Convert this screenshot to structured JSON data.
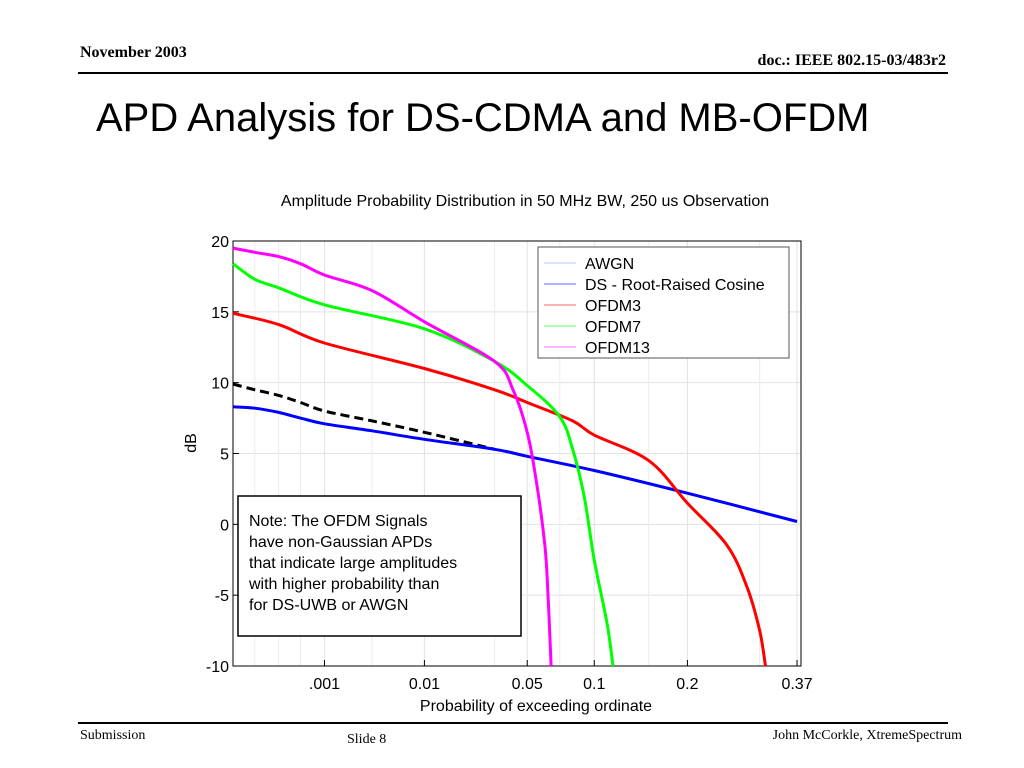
{
  "header": {
    "date": "November 2003",
    "doc": "doc.: IEEE 802.15-03/483r2"
  },
  "slide": {
    "title": "APD Analysis for DS-CDMA and MB-OFDM"
  },
  "footer": {
    "left": "Submission",
    "center": "Slide 8",
    "right": "John McCorkle, XtremeSpectrum"
  },
  "note": {
    "lines": [
      "Note: The OFDM Signals",
      "have non-Gaussian APDs",
      "that indicate large amplitudes",
      "with higher probability than",
      "for DS-UWB or AWGN"
    ]
  },
  "chart_data": {
    "type": "line",
    "title": "Amplitude Probability Distribution in 50 MHz BW, 250 us Observation",
    "xlabel": "Probability of exceeding ordinate",
    "ylabel": "dB",
    "ylim": [
      -10,
      20
    ],
    "yticks": [
      20,
      15,
      10,
      5,
      0,
      -5,
      -10
    ],
    "xticks": [
      ".001",
      "0.01",
      "0.05",
      "0.1",
      "0.2",
      "0.37"
    ],
    "grid": true,
    "legend_position": "top-right",
    "series": [
      {
        "name": "AWGN",
        "color": "#000000",
        "style": "dashed",
        "points": [
          [
            1e-05,
            9.9
          ],
          [
            3e-05,
            9.5
          ],
          [
            0.0001,
            9.1
          ],
          [
            0.0003,
            8.6
          ],
          [
            0.001,
            8.0
          ],
          [
            0.003,
            7.3
          ],
          [
            0.01,
            6.5
          ],
          [
            0.03,
            5.3
          ]
        ]
      },
      {
        "name": "DS - Root-Raised Cosine",
        "color": "#0000ff",
        "style": "solid",
        "points": [
          [
            1e-05,
            8.3
          ],
          [
            3e-05,
            8.2
          ],
          [
            0.0001,
            7.9
          ],
          [
            0.0003,
            7.5
          ],
          [
            0.001,
            7.1
          ],
          [
            0.003,
            6.6
          ],
          [
            0.01,
            6.0
          ],
          [
            0.03,
            5.3
          ],
          [
            0.05,
            4.8
          ],
          [
            0.1,
            3.8
          ],
          [
            0.2,
            2.2
          ],
          [
            0.37,
            0.2
          ]
        ]
      },
      {
        "name": "OFDM3",
        "color": "#ff0000",
        "style": "solid",
        "points": [
          [
            1e-05,
            14.9
          ],
          [
            0.0001,
            14.1
          ],
          [
            0.001,
            12.8
          ],
          [
            0.01,
            11.0
          ],
          [
            0.03,
            9.5
          ],
          [
            0.05,
            8.6
          ],
          [
            0.08,
            7.3
          ],
          [
            0.1,
            6.3
          ],
          [
            0.15,
            4.5
          ],
          [
            0.2,
            1.5
          ],
          [
            0.25,
            -1.5
          ],
          [
            0.28,
            -4.5
          ],
          [
            0.3,
            -7.5
          ],
          [
            0.31,
            -10
          ]
        ]
      },
      {
        "name": "OFDM7",
        "color": "#00ff00",
        "style": "solid",
        "points": [
          [
            1e-05,
            18.4
          ],
          [
            3e-05,
            17.3
          ],
          [
            0.0001,
            16.7
          ],
          [
            0.001,
            15.5
          ],
          [
            0.01,
            13.8
          ],
          [
            0.03,
            11.5
          ],
          [
            0.05,
            9.8
          ],
          [
            0.07,
            7.6
          ],
          [
            0.08,
            5.3
          ],
          [
            0.09,
            2.0
          ],
          [
            0.1,
            -2.5
          ],
          [
            0.11,
            -7.0
          ],
          [
            0.115,
            -10
          ]
        ]
      },
      {
        "name": "OFDM13",
        "color": "#ff00ff",
        "style": "solid",
        "points": [
          [
            1e-05,
            19.5
          ],
          [
            3e-05,
            19.2
          ],
          [
            0.0001,
            18.9
          ],
          [
            0.0003,
            18.4
          ],
          [
            0.001,
            17.6
          ],
          [
            0.003,
            16.5
          ],
          [
            0.01,
            14.3
          ],
          [
            0.03,
            11.5
          ],
          [
            0.04,
            9.5
          ],
          [
            0.05,
            6.5
          ],
          [
            0.055,
            3.0
          ],
          [
            0.06,
            -1.5
          ],
          [
            0.062,
            -5.0
          ],
          [
            0.064,
            -10
          ]
        ]
      }
    ]
  }
}
